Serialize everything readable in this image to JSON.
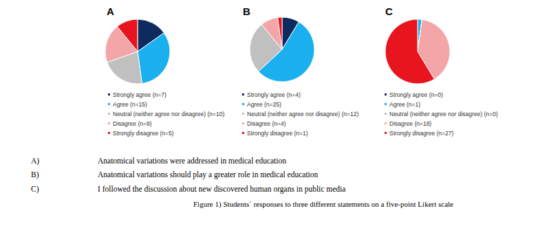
{
  "chart_data": [
    {
      "type": "pie",
      "title": "A",
      "legend": "bottom",
      "categories": [
        "Strongly agree (n=7)",
        "Agree (n=15)",
        "Neutral (neither agree nor disagree) (n=10)",
        "Disagree (n=9)",
        "Strongly disagree (n=5)"
      ],
      "values": [
        7,
        15,
        10,
        9,
        5
      ],
      "colors": [
        "#0f2a5e",
        "#1ab0f0",
        "#c0c0c0",
        "#f4a5a8",
        "#e8141e"
      ]
    },
    {
      "type": "pie",
      "title": "B",
      "legend": "bottom",
      "categories": [
        "Strongly agree (n=4)",
        "Agree (n=25)",
        "Neutral (neither agree nor disagree) (n=12)",
        "Disagree (n=4)",
        "Strongly disagree (n=1)"
      ],
      "values": [
        4,
        25,
        12,
        4,
        1
      ],
      "colors": [
        "#0f2a5e",
        "#1ab0f0",
        "#c0c0c0",
        "#f4a5a8",
        "#e8141e"
      ]
    },
    {
      "type": "pie",
      "title": "C",
      "legend": "bottom",
      "categories": [
        "Strongly agree (n=0)",
        "Agree (n=1)",
        "Neutral (neither agree nor disagree) (n=0)",
        "Disagree (n=18)",
        "Strongly disagree (n=27)"
      ],
      "values": [
        0,
        1,
        0,
        18,
        27
      ],
      "colors": [
        "#0f2a5e",
        "#1ab0f0",
        "#c0c0c0",
        "#f4a5a8",
        "#e8141e"
      ]
    }
  ],
  "figure": {
    "statements": [
      {
        "label": "A)",
        "text": "Anatomical variations were addressed in medical education"
      },
      {
        "label": "B)",
        "text": "Anatomical variations should play a greater role in medical education"
      },
      {
        "label": "C)",
        "text": "I followed the discussion about new discovered human organs in public media"
      }
    ],
    "caption": "Figure 1) Students´ responses to three different statements on a five-point Likert scale"
  }
}
